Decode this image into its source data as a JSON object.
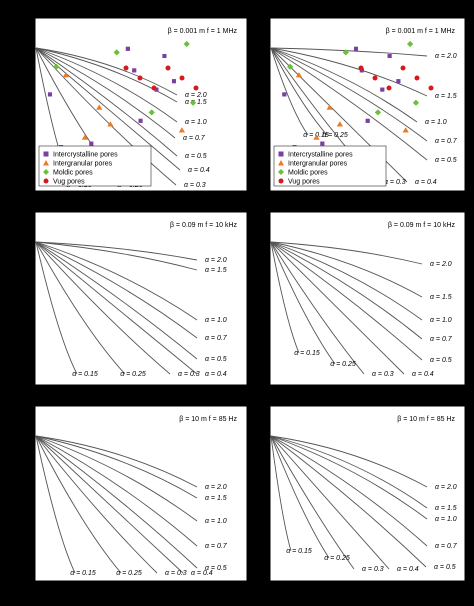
{
  "colors": {
    "background": "#000000",
    "plot_bg": "#ffffff",
    "curve": "#555555",
    "intercrystalline": "#7b3fa0",
    "intergranular": "#f07a1e",
    "moldic": "#6bbf3a",
    "vug": "#d7191c"
  },
  "legend": {
    "items": [
      {
        "label": "Intercrystalline pores",
        "marker": "square",
        "color": "#7b3fa0"
      },
      {
        "label": "Intergranular pores",
        "marker": "triangle",
        "color": "#f07a1e"
      },
      {
        "label": "Moldic pores",
        "marker": "diamond",
        "color": "#6bbf3a"
      },
      {
        "label": "Vug pores",
        "marker": "circle",
        "color": "#d7191c"
      }
    ]
  },
  "chart_data": [
    {
      "type": "line",
      "panel": "top-left",
      "annotation": "β = 0.001 m   f = 1 MHz",
      "curves": [
        {
          "label": "α = 2.0",
          "alpha": 2.0
        },
        {
          "label": "α = 1.5",
          "alpha": 1.5
        },
        {
          "label": "α = 1.0",
          "alpha": 1.0
        },
        {
          "label": "α = 0.7",
          "alpha": 0.7
        },
        {
          "label": "α = 0.5",
          "alpha": 0.5
        },
        {
          "label": "α = 0.4",
          "alpha": 0.4
        },
        {
          "label": "α = 0.3",
          "alpha": 0.3
        },
        {
          "label": "α = 0.25",
          "alpha": 0.25
        },
        {
          "label": "α = 0.15",
          "alpha": 0.15
        }
      ],
      "legend": "bottom-left",
      "has_points": true
    },
    {
      "type": "line",
      "panel": "top-right",
      "annotation": "β = 0.001 m   f = 1 MHz",
      "curves": [
        {
          "label": "α = 2.0",
          "alpha": 2.0
        },
        {
          "label": "α = 1.5",
          "alpha": 1.5
        },
        {
          "label": "α = 1.0",
          "alpha": 1.0
        },
        {
          "label": "α = 0.7",
          "alpha": 0.7
        },
        {
          "label": "α = 0.5",
          "alpha": 0.5
        },
        {
          "label": "α = 0.4",
          "alpha": 0.4
        },
        {
          "label": "α = 0.3",
          "alpha": 0.3
        },
        {
          "label": "α = 0.25",
          "alpha": 0.25
        },
        {
          "label": "α = 0.15",
          "alpha": 0.15
        }
      ],
      "legend": "bottom-left",
      "has_points": true
    },
    {
      "type": "line",
      "panel": "middle-left",
      "annotation": "β = 0.09 m   f = 10 kHz",
      "curves": [
        {
          "label": "α = 2.0",
          "alpha": 2.0
        },
        {
          "label": "α = 1.5",
          "alpha": 1.5
        },
        {
          "label": "α = 1.0",
          "alpha": 1.0
        },
        {
          "label": "α = 0.7",
          "alpha": 0.7
        },
        {
          "label": "α = 0.5",
          "alpha": 0.5
        },
        {
          "label": "α = 0.4",
          "alpha": 0.4
        },
        {
          "label": "α = 0.3",
          "alpha": 0.3
        },
        {
          "label": "α = 0.25",
          "alpha": 0.25
        },
        {
          "label": "α = 0.15",
          "alpha": 0.15
        }
      ],
      "has_points": false
    },
    {
      "type": "line",
      "panel": "middle-right",
      "annotation": "β = 0.09 m   f = 10 kHz",
      "curves": [
        {
          "label": "α = 2.0",
          "alpha": 2.0
        },
        {
          "label": "α = 1.5",
          "alpha": 1.5
        },
        {
          "label": "α = 1.0",
          "alpha": 1.0
        },
        {
          "label": "α = 0.7",
          "alpha": 0.7
        },
        {
          "label": "α = 0.5",
          "alpha": 0.5
        },
        {
          "label": "α = 0.4",
          "alpha": 0.4
        },
        {
          "label": "α = 0.3",
          "alpha": 0.3
        },
        {
          "label": "α = 0.25",
          "alpha": 0.25
        },
        {
          "label": "α = 0.15",
          "alpha": 0.15
        }
      ],
      "has_points": false
    },
    {
      "type": "line",
      "panel": "bottom-left",
      "annotation": "β = 10 m    f = 85 Hz",
      "curves": [
        {
          "label": "α = 2.0",
          "alpha": 2.0
        },
        {
          "label": "α = 1.5",
          "alpha": 1.5
        },
        {
          "label": "α = 1.0",
          "alpha": 1.0
        },
        {
          "label": "α = 0.7",
          "alpha": 0.7
        },
        {
          "label": "α = 0.5",
          "alpha": 0.5
        },
        {
          "label": "α = 0.4",
          "alpha": 0.4
        },
        {
          "label": "α = 0.3",
          "alpha": 0.3
        },
        {
          "label": "α = 0.25",
          "alpha": 0.25
        },
        {
          "label": "α = 0.15",
          "alpha": 0.15
        }
      ],
      "has_points": false
    },
    {
      "type": "line",
      "panel": "bottom-right",
      "annotation": "β = 10 m    f = 85 Hz",
      "curves": [
        {
          "label": "α = 2.0",
          "alpha": 2.0
        },
        {
          "label": "α = 1.5",
          "alpha": 1.5
        },
        {
          "label": "α = 1.0",
          "alpha": 1.0
        },
        {
          "label": "α = 0.7",
          "alpha": 0.7
        },
        {
          "label": "α = 0.5",
          "alpha": 0.5
        },
        {
          "label": "α = 0.4",
          "alpha": 0.4
        },
        {
          "label": "α = 0.3",
          "alpha": 0.3
        },
        {
          "label": "α = 0.25",
          "alpha": 0.25
        },
        {
          "label": "α = 0.15",
          "alpha": 0.15
        }
      ],
      "has_points": false
    }
  ]
}
